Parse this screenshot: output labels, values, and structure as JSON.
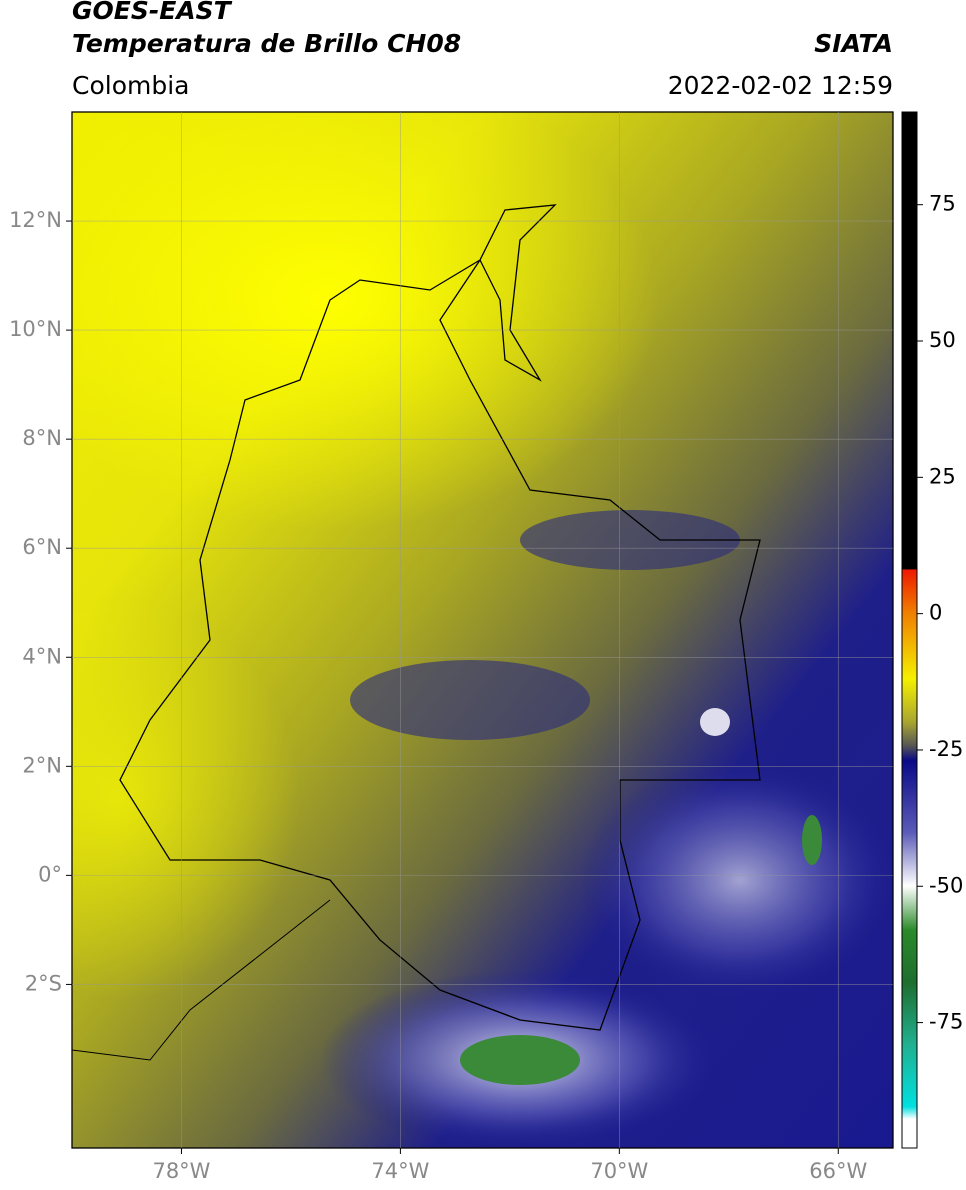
{
  "header": {
    "title": "GOES-EAST",
    "subtitle": "Temperatura de Brillo CH08",
    "region": "Colombia",
    "source": "SIATA",
    "datetime": "2022-02-02 12:59"
  },
  "map": {
    "xlim": [
      -80,
      -65
    ],
    "ylim": [
      -5,
      14
    ],
    "xticks": [
      {
        "value": -78,
        "label": "78°W"
      },
      {
        "value": -74,
        "label": "74°W"
      },
      {
        "value": -70,
        "label": "70°W"
      },
      {
        "value": -66,
        "label": "66°W"
      }
    ],
    "yticks": [
      {
        "value": 12,
        "label": "12°N"
      },
      {
        "value": 10,
        "label": "10°N"
      },
      {
        "value": 8,
        "label": "8°N"
      },
      {
        "value": 6,
        "label": "6°N"
      },
      {
        "value": 4,
        "label": "4°N"
      },
      {
        "value": 2,
        "label": "2°N"
      },
      {
        "value": 0,
        "label": "0°"
      },
      {
        "value": -2,
        "label": "2°S"
      }
    ],
    "grid": true
  },
  "colorbar": {
    "lim": [
      -98,
      92
    ],
    "ticks": [
      75,
      50,
      25,
      0,
      -25,
      -50,
      -75
    ]
  }
}
